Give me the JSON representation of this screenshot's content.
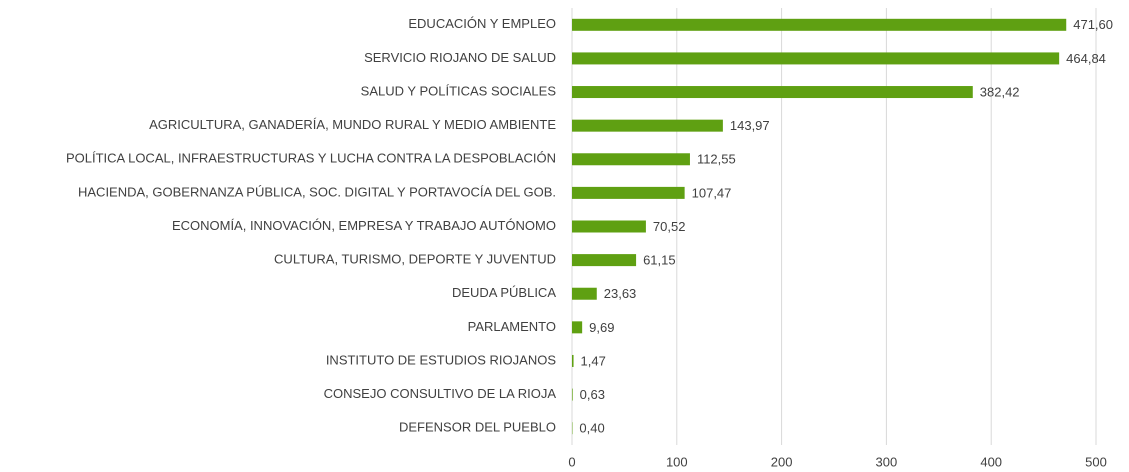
{
  "chart_data": {
    "type": "bar",
    "orientation": "horizontal",
    "categories": [
      "EDUCACIÓN Y EMPLEO",
      "SERVICIO RIOJANO DE SALUD",
      "SALUD Y POLÍTICAS SOCIALES",
      "AGRICULTURA, GANADERÍA, MUNDO RURAL Y MEDIO AMBIENTE",
      "POLÍTICA LOCAL, INFRAESTRUCTURAS Y LUCHA CONTRA LA DESPOBLACIÓN",
      "HACIENDA, GOBERNANZA PÚBLICA, SOC. DIGITAL Y PORTAVOCÍA DEL GOB.",
      "ECONOMÍA, INNOVACIÓN, EMPRESA Y TRABAJO AUTÓNOMO",
      "CULTURA, TURISMO, DEPORTE Y JUVENTUD",
      "DEUDA PÚBLICA",
      "PARLAMENTO",
      "INSTITUTO DE ESTUDIOS RIOJANOS",
      "CONSEJO CONSULTIVO DE LA RIOJA",
      "DEFENSOR DEL PUEBLO"
    ],
    "values": [
      471.6,
      464.84,
      382.42,
      143.97,
      112.55,
      107.47,
      70.52,
      61.15,
      23.63,
      9.69,
      1.47,
      0.63,
      0.4
    ],
    "value_labels": [
      "471,60",
      "464,84",
      "382,42",
      "143,97",
      "112,55",
      "107,47",
      "70,52",
      "61,15",
      "23,63",
      "9,69",
      "1,47",
      "0,63",
      "0,40"
    ],
    "color": "#5fa012",
    "xlim": [
      0,
      500
    ],
    "xticks": [
      0,
      100,
      200,
      300,
      400,
      500
    ],
    "grid": true
  }
}
